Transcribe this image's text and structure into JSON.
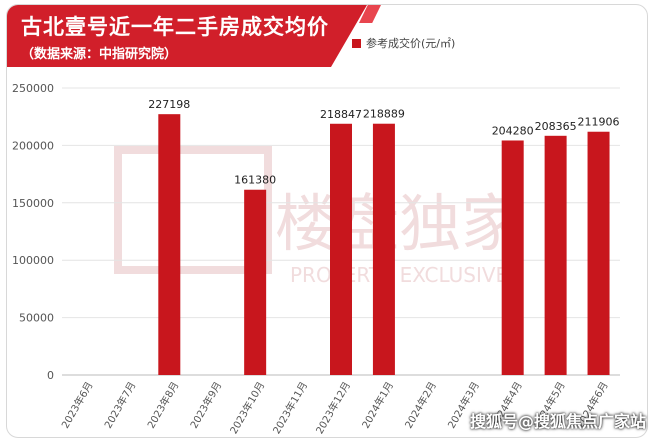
{
  "header": {
    "title": "古北壹号近一年二手房成交均价",
    "subtitle": "（数据来源：中指研究院）"
  },
  "watermark_bg": {
    "text_large": "楼盘独家",
    "text_small": "PROPERTY EXCLUSIVE"
  },
  "watermark_corner": "搜狐号@搜狐焦点广家站",
  "colors": {
    "bar": "#c8161d",
    "banner": "#d11f2a"
  },
  "chart_data": {
    "type": "bar",
    "categories": [
      "2023年6月",
      "2023年7月",
      "2023年8月",
      "2023年9月",
      "2023年10月",
      "2023年11月",
      "2023年12月",
      "2024年1月",
      "2024年2月",
      "2024年3月",
      "2024年4月",
      "2024年5月",
      "2024年6月"
    ],
    "series": [
      {
        "name": "参考成交价(元/㎡)",
        "values": [
          null,
          null,
          227198,
          null,
          161380,
          null,
          218847,
          218889,
          null,
          null,
          204280,
          208365,
          211906
        ]
      }
    ],
    "ylim": [
      0,
      250000
    ],
    "yticks": [
      0,
      50000,
      100000,
      150000,
      200000,
      250000
    ],
    "data_labels": [
      "",
      "",
      "227198",
      "",
      "161380",
      "",
      "218847",
      "218889",
      "",
      "",
      "204280",
      "208365",
      "211906"
    ],
    "grid": true,
    "legend": "top-right"
  }
}
